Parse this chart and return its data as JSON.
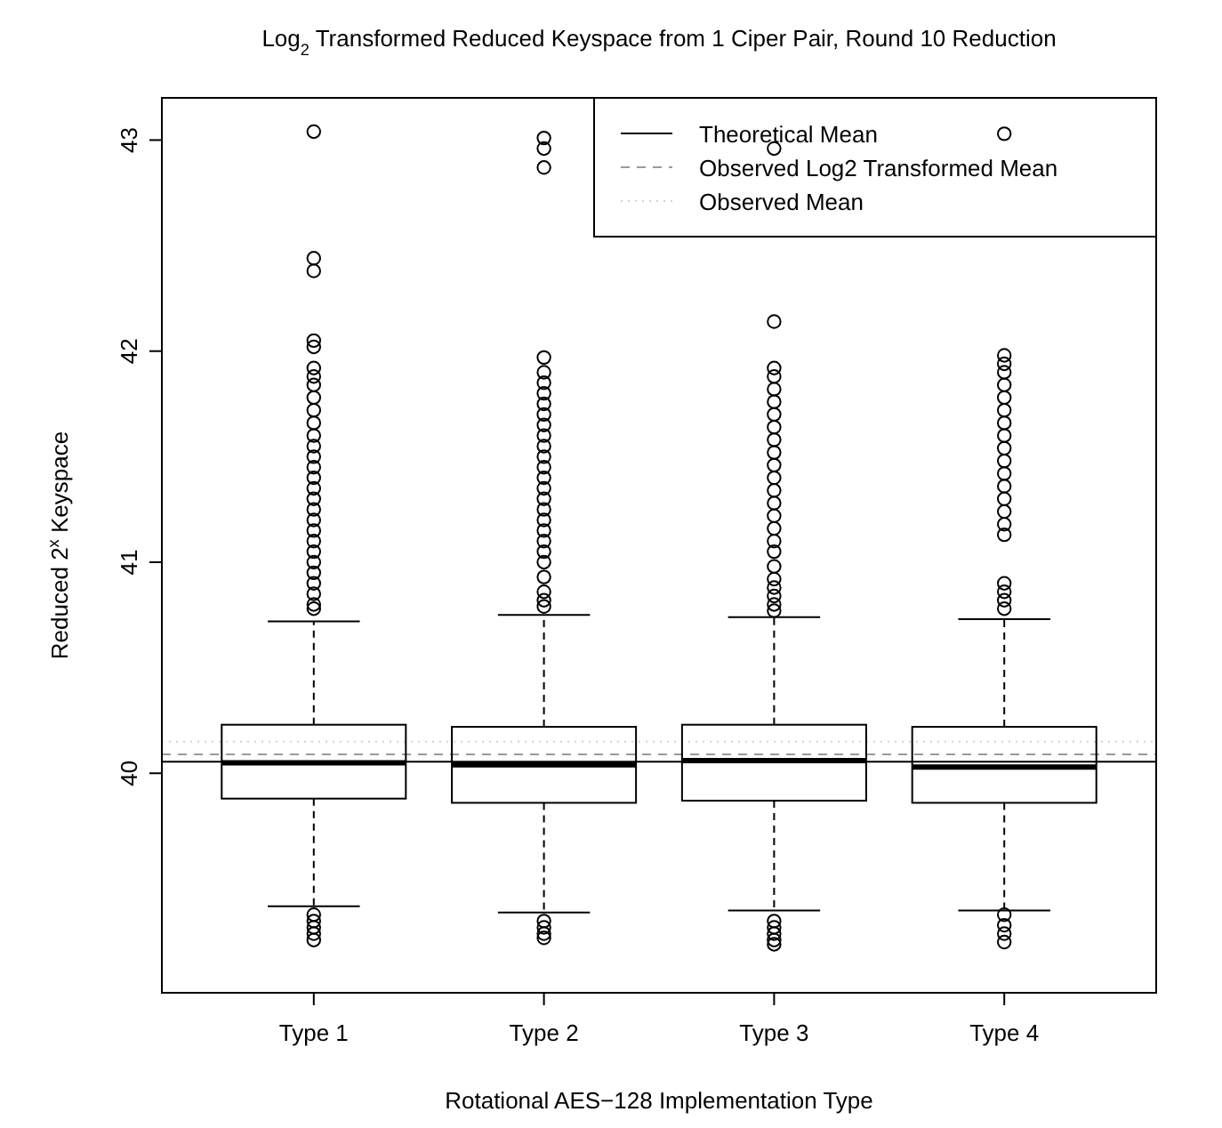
{
  "chart_data": {
    "type": "box",
    "title": "Log$_{2}$ Transformed Reduced Keyspace from 1 Ciper Pair, Round 10 Reduction",
    "xlabel": "Rotational AES−128 Implementation Type",
    "ylabel": "Reduced  2$^{x}$ Keyspace",
    "categories": [
      "Type 1",
      "Type 2",
      "Type 3",
      "Type 4"
    ],
    "boxes": [
      {
        "low": 39.37,
        "q1": 39.88,
        "median": 40.05,
        "q3": 40.23,
        "high": 40.72,
        "outliers": [
          43.04,
          42.44,
          42.38,
          42.05,
          42.02,
          41.92,
          41.88,
          41.84,
          41.78,
          41.72,
          41.66,
          41.6,
          41.55,
          41.5,
          41.45,
          41.4,
          41.35,
          41.3,
          41.25,
          41.2,
          41.15,
          41.1,
          41.05,
          41.0,
          40.95,
          40.9,
          40.85,
          40.8,
          40.78,
          39.33,
          39.3,
          39.27,
          39.24,
          39.21
        ]
      },
      {
        "low": 39.34,
        "q1": 39.86,
        "median": 40.04,
        "q3": 40.22,
        "high": 40.75,
        "outliers": [
          43.01,
          42.96,
          42.87,
          41.97,
          41.9,
          41.85,
          41.8,
          41.75,
          41.7,
          41.65,
          41.6,
          41.55,
          41.5,
          41.45,
          41.4,
          41.35,
          41.3,
          41.25,
          41.2,
          41.15,
          41.1,
          41.05,
          41.0,
          40.93,
          40.86,
          40.82,
          40.79,
          39.3,
          39.27,
          39.24,
          39.22
        ]
      },
      {
        "low": 39.35,
        "q1": 39.87,
        "median": 40.06,
        "q3": 40.23,
        "high": 40.74,
        "outliers": [
          42.96,
          42.14,
          41.92,
          41.88,
          41.82,
          41.76,
          41.7,
          41.64,
          41.58,
          41.52,
          41.46,
          41.4,
          41.34,
          41.28,
          41.22,
          41.16,
          41.1,
          41.05,
          40.98,
          40.92,
          40.88,
          40.84,
          40.8,
          40.77,
          39.3,
          39.27,
          39.24,
          39.21,
          39.19
        ]
      },
      {
        "low": 39.35,
        "q1": 39.86,
        "median": 40.03,
        "q3": 40.22,
        "high": 40.73,
        "outliers": [
          43.03,
          41.98,
          41.94,
          41.9,
          41.84,
          41.78,
          41.72,
          41.66,
          41.6,
          41.54,
          41.48,
          41.42,
          41.36,
          41.3,
          41.24,
          41.18,
          41.13,
          40.9,
          40.86,
          40.82,
          40.78,
          39.33,
          39.28,
          39.24,
          39.2
        ]
      }
    ],
    "ylim": [
      38.96,
      43.2
    ],
    "yticks": [
      40,
      41,
      42,
      43
    ],
    "ref_lines": [
      {
        "axis": "y",
        "value": 40.055,
        "label": "Theoretical Mean",
        "color": "#000000",
        "line_style": "solid"
      },
      {
        "axis": "y",
        "value": 40.09,
        "label": "Observed Log2 Transformed Mean",
        "color": "#999999",
        "line_style": "dashed"
      },
      {
        "axis": "y",
        "value": 40.15,
        "label": "Observed Mean",
        "color": "#d3d3d3",
        "line_style": "dotted"
      }
    ],
    "legend": "top right",
    "grid": false
  }
}
